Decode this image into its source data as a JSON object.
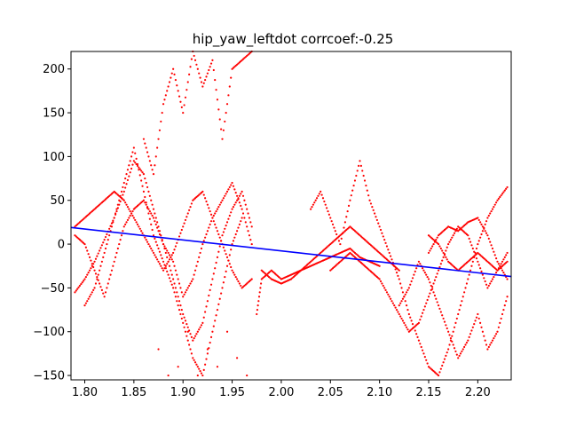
{
  "chart_data": {
    "type": "scatter",
    "title": "hip_yaw_leftdot corrcoef:-0.25",
    "xlabel": "",
    "ylabel": "",
    "xlim": [
      1.786,
      2.234
    ],
    "ylim": [
      -155,
      220
    ],
    "x_ticks": [
      1.8,
      1.85,
      1.9,
      1.95,
      2.0,
      2.05,
      2.1,
      2.15,
      2.2
    ],
    "x_tick_labels": [
      "1.80",
      "1.85",
      "1.90",
      "1.95",
      "2.00",
      "2.05",
      "2.10",
      "2.15",
      "2.20"
    ],
    "y_ticks": [
      -150,
      -100,
      -50,
      0,
      50,
      100,
      150,
      200
    ],
    "y_tick_labels": [
      "−150",
      "−100",
      "−50",
      "0",
      "50",
      "100",
      "150",
      "200"
    ],
    "grid": false,
    "legend": "none",
    "series": [
      {
        "kind": "scatter",
        "color": "#ff0000",
        "marker_radius": 1.1,
        "points": [
          [
            1.79,
            -55
          ],
          [
            1.8,
            -40
          ],
          [
            1.81,
            -20
          ],
          [
            1.82,
            5
          ],
          [
            1.83,
            30
          ],
          [
            1.84,
            60
          ],
          [
            1.85,
            95
          ],
          [
            1.86,
            80
          ],
          [
            1.87,
            40
          ],
          [
            1.88,
            0
          ],
          [
            1.89,
            -40
          ],
          [
            1.9,
            -80
          ],
          [
            1.91,
            -110
          ],
          [
            1.92,
            -90
          ],
          [
            1.93,
            -40
          ],
          [
            1.94,
            10
          ],
          [
            1.95,
            40
          ],
          [
            1.96,
            60
          ],
          [
            1.97,
            20
          ],
          [
            1.79,
            20
          ],
          [
            1.8,
            30
          ],
          [
            1.81,
            40
          ],
          [
            1.82,
            50
          ],
          [
            1.83,
            60
          ],
          [
            1.84,
            50
          ],
          [
            1.85,
            30
          ],
          [
            1.86,
            10
          ],
          [
            1.87,
            -10
          ],
          [
            1.88,
            -30
          ],
          [
            1.89,
            -10
          ],
          [
            1.9,
            20
          ],
          [
            1.91,
            50
          ],
          [
            1.92,
            60
          ],
          [
            1.93,
            30
          ],
          [
            1.94,
            0
          ],
          [
            1.95,
            -30
          ],
          [
            1.96,
            -50
          ],
          [
            1.97,
            -40
          ],
          [
            1.79,
            10
          ],
          [
            1.8,
            0
          ],
          [
            1.81,
            -30
          ],
          [
            1.82,
            -60
          ],
          [
            1.83,
            -20
          ],
          [
            1.84,
            20
          ],
          [
            1.85,
            40
          ],
          [
            1.86,
            50
          ],
          [
            1.87,
            30
          ],
          [
            1.88,
            0
          ],
          [
            1.89,
            -20
          ],
          [
            1.9,
            -60
          ],
          [
            1.91,
            -40
          ],
          [
            1.92,
            0
          ],
          [
            1.93,
            30
          ],
          [
            1.94,
            50
          ],
          [
            1.95,
            70
          ],
          [
            1.96,
            40
          ],
          [
            1.97,
            0
          ],
          [
            1.8,
            -70
          ],
          [
            1.81,
            -50
          ],
          [
            1.82,
            -10
          ],
          [
            1.83,
            30
          ],
          [
            1.84,
            70
          ],
          [
            1.85,
            110
          ],
          [
            1.86,
            60
          ],
          [
            1.87,
            10
          ],
          [
            1.88,
            -20
          ],
          [
            1.89,
            -50
          ],
          [
            1.9,
            -90
          ],
          [
            1.91,
            -130
          ],
          [
            1.92,
            -150
          ],
          [
            1.93,
            -100
          ],
          [
            1.94,
            -50
          ],
          [
            1.95,
            0
          ],
          [
            1.96,
            30
          ],
          [
            1.86,
            120
          ],
          [
            1.87,
            80
          ],
          [
            1.88,
            160
          ],
          [
            1.89,
            200
          ],
          [
            1.9,
            150
          ],
          [
            1.91,
            220
          ],
          [
            1.92,
            180
          ],
          [
            1.93,
            210
          ],
          [
            1.94,
            120
          ],
          [
            1.95,
            200
          ],
          [
            1.96,
            210
          ],
          [
            1.97,
            220
          ],
          [
            1.965,
            -150
          ],
          [
            1.955,
            -130
          ],
          [
            1.945,
            -100
          ],
          [
            1.935,
            -140
          ],
          [
            1.925,
            -120
          ],
          [
            1.915,
            -150
          ],
          [
            1.905,
            -100
          ],
          [
            1.895,
            -140
          ],
          [
            1.885,
            -150
          ],
          [
            1.875,
            -120
          ],
          [
            1.975,
            -80
          ],
          [
            1.98,
            -40
          ],
          [
            1.99,
            -30
          ],
          [
            2.0,
            -40
          ],
          [
            2.01,
            -35
          ],
          [
            2.02,
            -30
          ],
          [
            2.03,
            -25
          ],
          [
            2.04,
            -20
          ],
          [
            2.05,
            -15
          ],
          [
            2.06,
            -10
          ],
          [
            2.07,
            -5
          ],
          [
            2.08,
            -15
          ],
          [
            2.09,
            -20
          ],
          [
            2.1,
            -25
          ],
          [
            1.98,
            -30
          ],
          [
            1.99,
            -40
          ],
          [
            2.0,
            -45
          ],
          [
            2.01,
            -40
          ],
          [
            2.02,
            -30
          ],
          [
            2.03,
            -20
          ],
          [
            2.04,
            -10
          ],
          [
            2.05,
            0
          ],
          [
            2.06,
            10
          ],
          [
            2.07,
            20
          ],
          [
            2.08,
            10
          ],
          [
            2.09,
            0
          ],
          [
            2.1,
            -10
          ],
          [
            2.11,
            -20
          ],
          [
            2.12,
            -30
          ],
          [
            2.03,
            40
          ],
          [
            2.04,
            60
          ],
          [
            2.05,
            30
          ],
          [
            2.06,
            0
          ],
          [
            2.07,
            50
          ],
          [
            2.08,
            95
          ],
          [
            2.09,
            50
          ],
          [
            2.1,
            20
          ],
          [
            2.11,
            -10
          ],
          [
            2.12,
            -40
          ],
          [
            2.13,
            -80
          ],
          [
            2.14,
            -110
          ],
          [
            2.15,
            -140
          ],
          [
            2.16,
            -150
          ],
          [
            2.17,
            -120
          ],
          [
            2.18,
            -80
          ],
          [
            2.19,
            -40
          ],
          [
            2.2,
            0
          ],
          [
            2.21,
            30
          ],
          [
            2.22,
            50
          ],
          [
            2.23,
            65
          ],
          [
            2.05,
            -30
          ],
          [
            2.06,
            -20
          ],
          [
            2.07,
            -10
          ],
          [
            2.08,
            -20
          ],
          [
            2.09,
            -30
          ],
          [
            2.1,
            -40
          ],
          [
            2.11,
            -60
          ],
          [
            2.12,
            -80
          ],
          [
            2.13,
            -100
          ],
          [
            2.14,
            -90
          ],
          [
            2.15,
            -60
          ],
          [
            2.16,
            -30
          ],
          [
            2.17,
            0
          ],
          [
            2.18,
            20
          ],
          [
            2.19,
            10
          ],
          [
            2.2,
            -20
          ],
          [
            2.21,
            -50
          ],
          [
            2.22,
            -30
          ],
          [
            2.23,
            -10
          ],
          [
            2.12,
            -70
          ],
          [
            2.13,
            -50
          ],
          [
            2.14,
            -20
          ],
          [
            2.15,
            -40
          ],
          [
            2.16,
            -70
          ],
          [
            2.17,
            -100
          ],
          [
            2.18,
            -130
          ],
          [
            2.19,
            -110
          ],
          [
            2.2,
            -80
          ],
          [
            2.21,
            -120
          ],
          [
            2.22,
            -100
          ],
          [
            2.23,
            -60
          ],
          [
            2.15,
            10
          ],
          [
            2.16,
            0
          ],
          [
            2.17,
            -20
          ],
          [
            2.18,
            -30
          ],
          [
            2.19,
            -20
          ],
          [
            2.2,
            -10
          ],
          [
            2.21,
            -20
          ],
          [
            2.22,
            -30
          ],
          [
            2.23,
            -20
          ],
          [
            2.15,
            -10
          ],
          [
            2.16,
            10
          ],
          [
            2.17,
            20
          ],
          [
            2.18,
            15
          ],
          [
            2.19,
            25
          ],
          [
            2.2,
            30
          ],
          [
            2.21,
            10
          ],
          [
            2.22,
            -20
          ],
          [
            2.23,
            -40
          ]
        ]
      },
      {
        "kind": "line",
        "name": "",
        "color": "#0000ff",
        "points": [
          [
            1.786,
            19
          ],
          [
            2.234,
            -37
          ]
        ]
      }
    ]
  }
}
